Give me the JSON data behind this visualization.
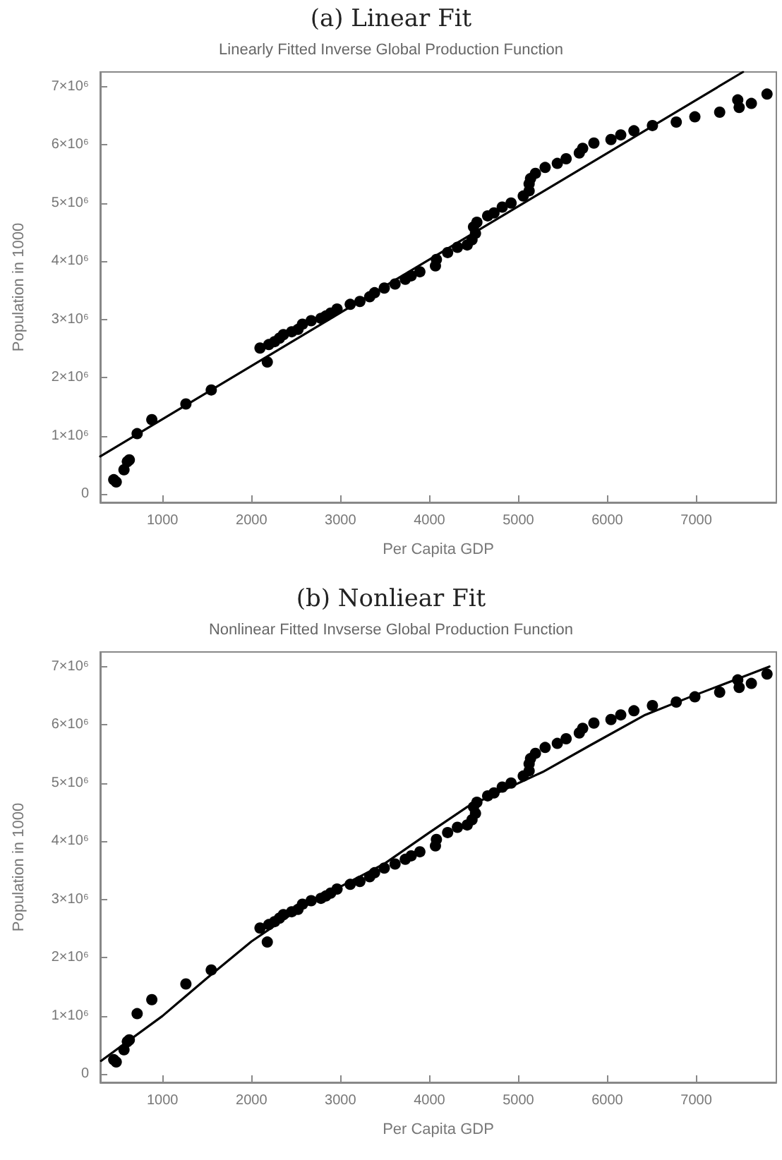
{
  "chart_data": [
    {
      "type": "scatter",
      "title": "(a) Linear Fit",
      "subtitle": "Linearly Fitted Inverse Global Production Function",
      "xlabel": "Per Capita GDP",
      "ylabel": "Population in 1000",
      "xlim": [
        300,
        7900
      ],
      "ylim": [
        -140000,
        7250000
      ],
      "xticks": [
        1000,
        2000,
        3000,
        4000,
        5000,
        6000,
        7000
      ],
      "yticks": [
        0,
        {
          "value": 1000000,
          "label": "1×10⁶"
        },
        {
          "value": 2000000,
          "label": "2×10⁶"
        },
        {
          "value": 3000000,
          "label": "3×10⁶"
        },
        {
          "value": 4000000,
          "label": "4×10⁶"
        },
        {
          "value": 5000000,
          "label": "5×10⁶"
        },
        {
          "value": 6000000,
          "label": "6×10⁶"
        },
        {
          "value": 7000000,
          "label": "7×10⁶"
        }
      ],
      "grid": false,
      "series": [
        {
          "type": "scatter",
          "marker": "circle",
          "color": "#000000",
          "x": [
            452,
            480,
            567,
            605,
            627,
            715,
            880,
            1263,
            1548,
            2096,
            2178,
            2195,
            2260,
            2315,
            2359,
            2452,
            2523,
            2573,
            2671,
            2781,
            2836,
            2890,
            2962,
            3110,
            3219,
            3329,
            3384,
            3493,
            3614,
            3729,
            3795,
            3893,
            4068,
            4079,
            4205,
            4315,
            4425,
            4479,
            4518,
            4496,
            4534,
            4655,
            4726,
            4819,
            4918,
            5055,
            5121,
            5121,
            5137,
            5192,
            5301,
            5438,
            5537,
            5685,
            5723,
            5849,
            6041,
            6151,
            6299,
            6507,
            6775,
            6984,
            7263,
            7466,
            7482,
            7619,
            7795
          ],
          "values": [
            250000,
            210000,
            420000,
            560000,
            590000,
            1040000,
            1280000,
            1550000,
            1790000,
            2510000,
            2270000,
            2570000,
            2620000,
            2680000,
            2740000,
            2790000,
            2830000,
            2920000,
            2980000,
            3020000,
            3060000,
            3110000,
            3180000,
            3260000,
            3310000,
            3390000,
            3460000,
            3540000,
            3610000,
            3690000,
            3750000,
            3820000,
            3920000,
            4030000,
            4150000,
            4240000,
            4280000,
            4370000,
            4480000,
            4590000,
            4670000,
            4780000,
            4830000,
            4930000,
            5000000,
            5120000,
            5210000,
            5330000,
            5420000,
            5510000,
            5610000,
            5680000,
            5760000,
            5860000,
            5940000,
            6030000,
            6090000,
            6170000,
            6240000,
            6330000,
            6390000,
            6480000,
            6560000,
            6770000,
            6640000,
            6710000,
            6870000
          ]
        },
        {
          "type": "line",
          "marker": "none",
          "line_style": "solid",
          "color": "#000000",
          "x": [
            300,
            7525
          ],
          "values": [
            650000,
            7250000
          ]
        }
      ]
    },
    {
      "type": "scatter",
      "title": "(b) Nonliear Fit",
      "subtitle": "Nonlinear Fitted Invserse Global Production Function",
      "xlabel": "Per Capita GDP",
      "ylabel": "Population in 1000",
      "xlim": [
        300,
        7900
      ],
      "ylim": [
        -140000,
        7250000
      ],
      "xticks": [
        1000,
        2000,
        3000,
        4000,
        5000,
        6000,
        7000
      ],
      "yticks": [
        0,
        {
          "value": 1000000,
          "label": "1×10⁶"
        },
        {
          "value": 2000000,
          "label": "2×10⁶"
        },
        {
          "value": 3000000,
          "label": "3×10⁶"
        },
        {
          "value": 4000000,
          "label": "4×10⁶"
        },
        {
          "value": 5000000,
          "label": "5×10⁶"
        },
        {
          "value": 6000000,
          "label": "6×10⁶"
        },
        {
          "value": 7000000,
          "label": "7×10⁶"
        }
      ],
      "grid": false,
      "series": [
        {
          "type": "scatter",
          "marker": "circle",
          "color": "#000000",
          "x": [
            452,
            480,
            567,
            605,
            627,
            715,
            880,
            1263,
            1548,
            2096,
            2178,
            2195,
            2260,
            2315,
            2359,
            2452,
            2523,
            2573,
            2671,
            2781,
            2836,
            2890,
            2962,
            3110,
            3219,
            3329,
            3384,
            3493,
            3614,
            3729,
            3795,
            3893,
            4068,
            4079,
            4205,
            4315,
            4425,
            4479,
            4518,
            4496,
            4534,
            4655,
            4726,
            4819,
            4918,
            5055,
            5121,
            5121,
            5137,
            5192,
            5301,
            5438,
            5537,
            5685,
            5723,
            5849,
            6041,
            6151,
            6299,
            6507,
            6775,
            6984,
            7263,
            7466,
            7482,
            7619,
            7795
          ],
          "values": [
            250000,
            210000,
            420000,
            560000,
            590000,
            1040000,
            1280000,
            1550000,
            1790000,
            2510000,
            2270000,
            2570000,
            2620000,
            2680000,
            2740000,
            2790000,
            2830000,
            2920000,
            2980000,
            3020000,
            3060000,
            3110000,
            3180000,
            3260000,
            3310000,
            3390000,
            3460000,
            3540000,
            3610000,
            3690000,
            3750000,
            3820000,
            3920000,
            4030000,
            4150000,
            4240000,
            4280000,
            4370000,
            4480000,
            4590000,
            4670000,
            4780000,
            4830000,
            4930000,
            5000000,
            5120000,
            5210000,
            5330000,
            5420000,
            5510000,
            5610000,
            5680000,
            5760000,
            5860000,
            5940000,
            6030000,
            6090000,
            6170000,
            6240000,
            6330000,
            6390000,
            6480000,
            6560000,
            6770000,
            6640000,
            6710000,
            6870000
          ]
        },
        {
          "type": "line",
          "marker": "none",
          "line_style": "solid",
          "color": "#000000",
          "x": [
            310,
            1000,
            1500,
            2000,
            2500,
            3000,
            3500,
            4000,
            4425,
            5274,
            5822,
            6425,
            6918,
            7466,
            7822
          ],
          "values": [
            230000,
            1000000,
            1650000,
            2280000,
            2800000,
            3220000,
            3620000,
            4150000,
            4590000,
            5190000,
            5660000,
            6170000,
            6470000,
            6790000,
            7000000
          ]
        }
      ]
    }
  ]
}
